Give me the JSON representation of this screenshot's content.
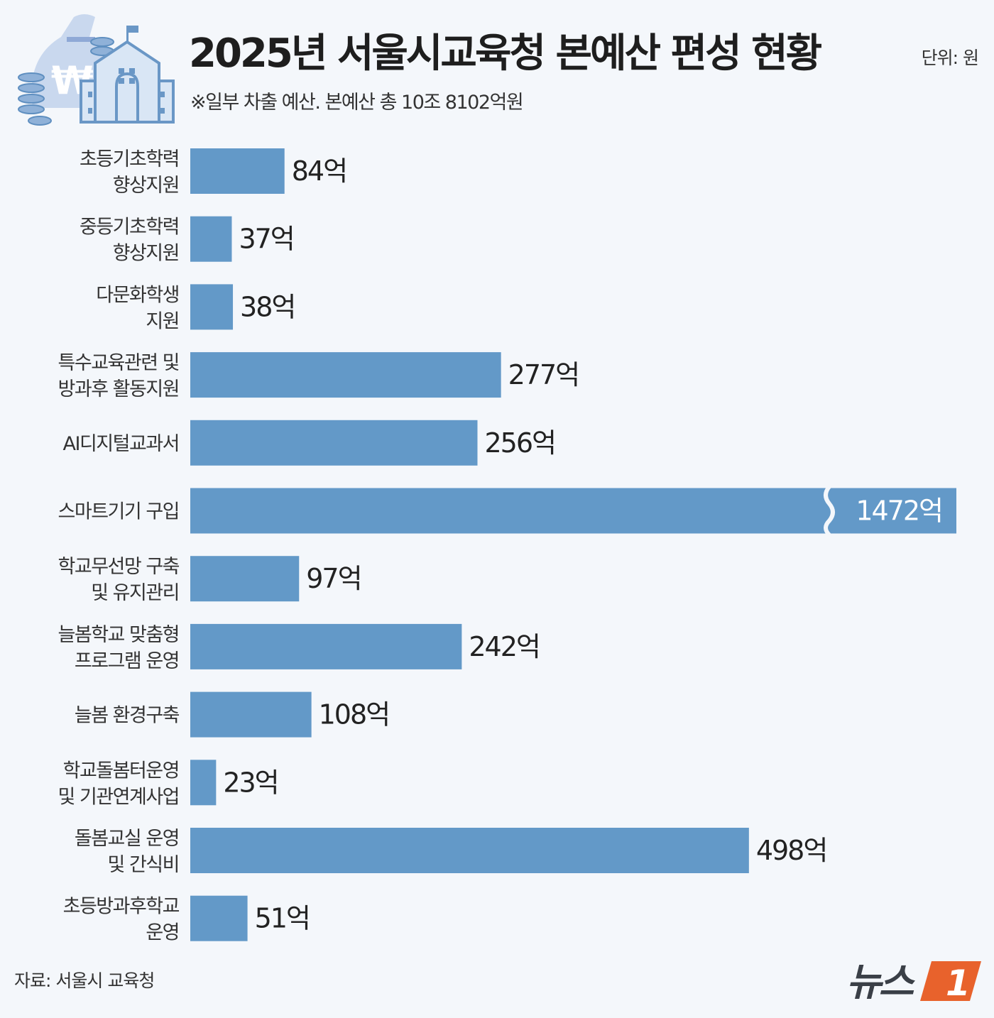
{
  "header": {
    "title": "2025년 서울시교육청 본예산 편성 현황",
    "subtitle": "※일부 차출 예산.  본예산 총 10조 8102억원",
    "unit": "단위: 원"
  },
  "footer": {
    "source": "자료: 서울시 교육청",
    "logo": "뉴스1"
  },
  "colors": {
    "bar": "#6399c8",
    "background": "#f4f7fb"
  },
  "chart_data": {
    "type": "bar",
    "orientation": "horizontal",
    "title": "2025년 서울시교육청 본예산 편성 현황",
    "unit_suffix": "억",
    "categories": [
      [
        "초등기초학력",
        "향상지원"
      ],
      [
        "중등기초학력",
        "향상지원"
      ],
      [
        "다문화학생",
        "지원"
      ],
      [
        "특수교육관련 및",
        "방과후 활동지원"
      ],
      [
        "AI디지털교과서"
      ],
      [
        "스마트기기 구입"
      ],
      [
        "학교무선망 구축",
        "및 유지관리"
      ],
      [
        "늘봄학교 맞춤형",
        "프로그램 운영"
      ],
      [
        "늘봄 환경구축"
      ],
      [
        "학교돌봄터운영",
        "및 기관연계사업"
      ],
      [
        "돌봄교실 운영",
        "및 간식비"
      ],
      [
        "초등방과후학교",
        "운영"
      ]
    ],
    "values": [
      84,
      37,
      38,
      277,
      256,
      1472,
      97,
      242,
      108,
      23,
      498,
      51
    ],
    "labels": [
      "84억",
      "37억",
      "38억",
      "277억",
      "256억",
      "1472억",
      "97억",
      "242억",
      "108억",
      "23억",
      "498억",
      "51억"
    ],
    "broken_bar_index": 5
  }
}
